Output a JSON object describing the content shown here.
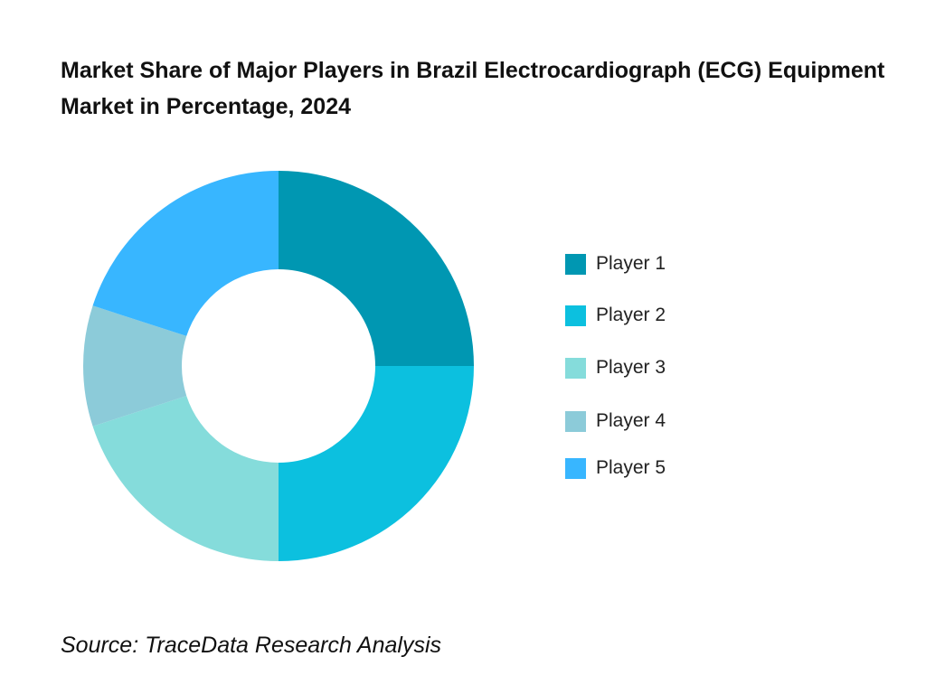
{
  "chart_data": {
    "type": "pie",
    "title": "Market Share of Major Players in Brazil Electrocardiograph (ECG) Equipment Market in Percentage, 2024",
    "categories": [
      "Player 1",
      "Player 2",
      "Player 3",
      "Player 4",
      "Player 5"
    ],
    "values": [
      25,
      25,
      20,
      10,
      20
    ],
    "colors": [
      "#0097b2",
      "#0cc0df",
      "#85dcdb",
      "#8ccbd9",
      "#38b6ff"
    ],
    "donut": true,
    "legend_position": "right",
    "source": "Source: TraceData Research Analysis"
  }
}
